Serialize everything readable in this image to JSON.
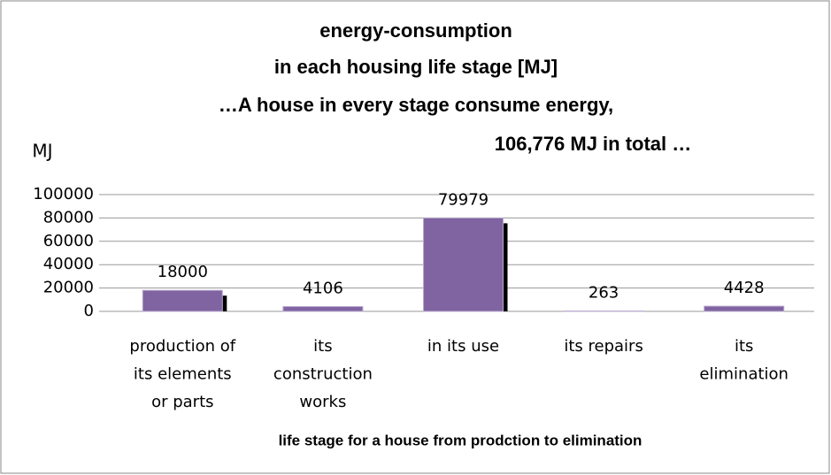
{
  "chart_data": {
    "type": "bar",
    "title": [
      "energy-consumption",
      "in each housing life stage [MJ]",
      "…A house in every stage consume energy,",
      "106,776 MJ in total …"
    ],
    "y_label": "MJ",
    "x_label": "life stage for a house from  prodction to elimination",
    "categories": [
      [
        "production of",
        "its elements",
        "or parts"
      ],
      [
        "its",
        "construction",
        "works"
      ],
      [
        "in its use"
      ],
      [
        "its repairs"
      ],
      [
        "its",
        "elimination"
      ]
    ],
    "values": [
      18000,
      4106,
      79979,
      263,
      4428
    ],
    "color": "#8064a2",
    "ylim": [
      0,
      100000
    ],
    "yticks": [
      0,
      20000,
      40000,
      60000,
      80000,
      100000
    ],
    "grid": true
  }
}
